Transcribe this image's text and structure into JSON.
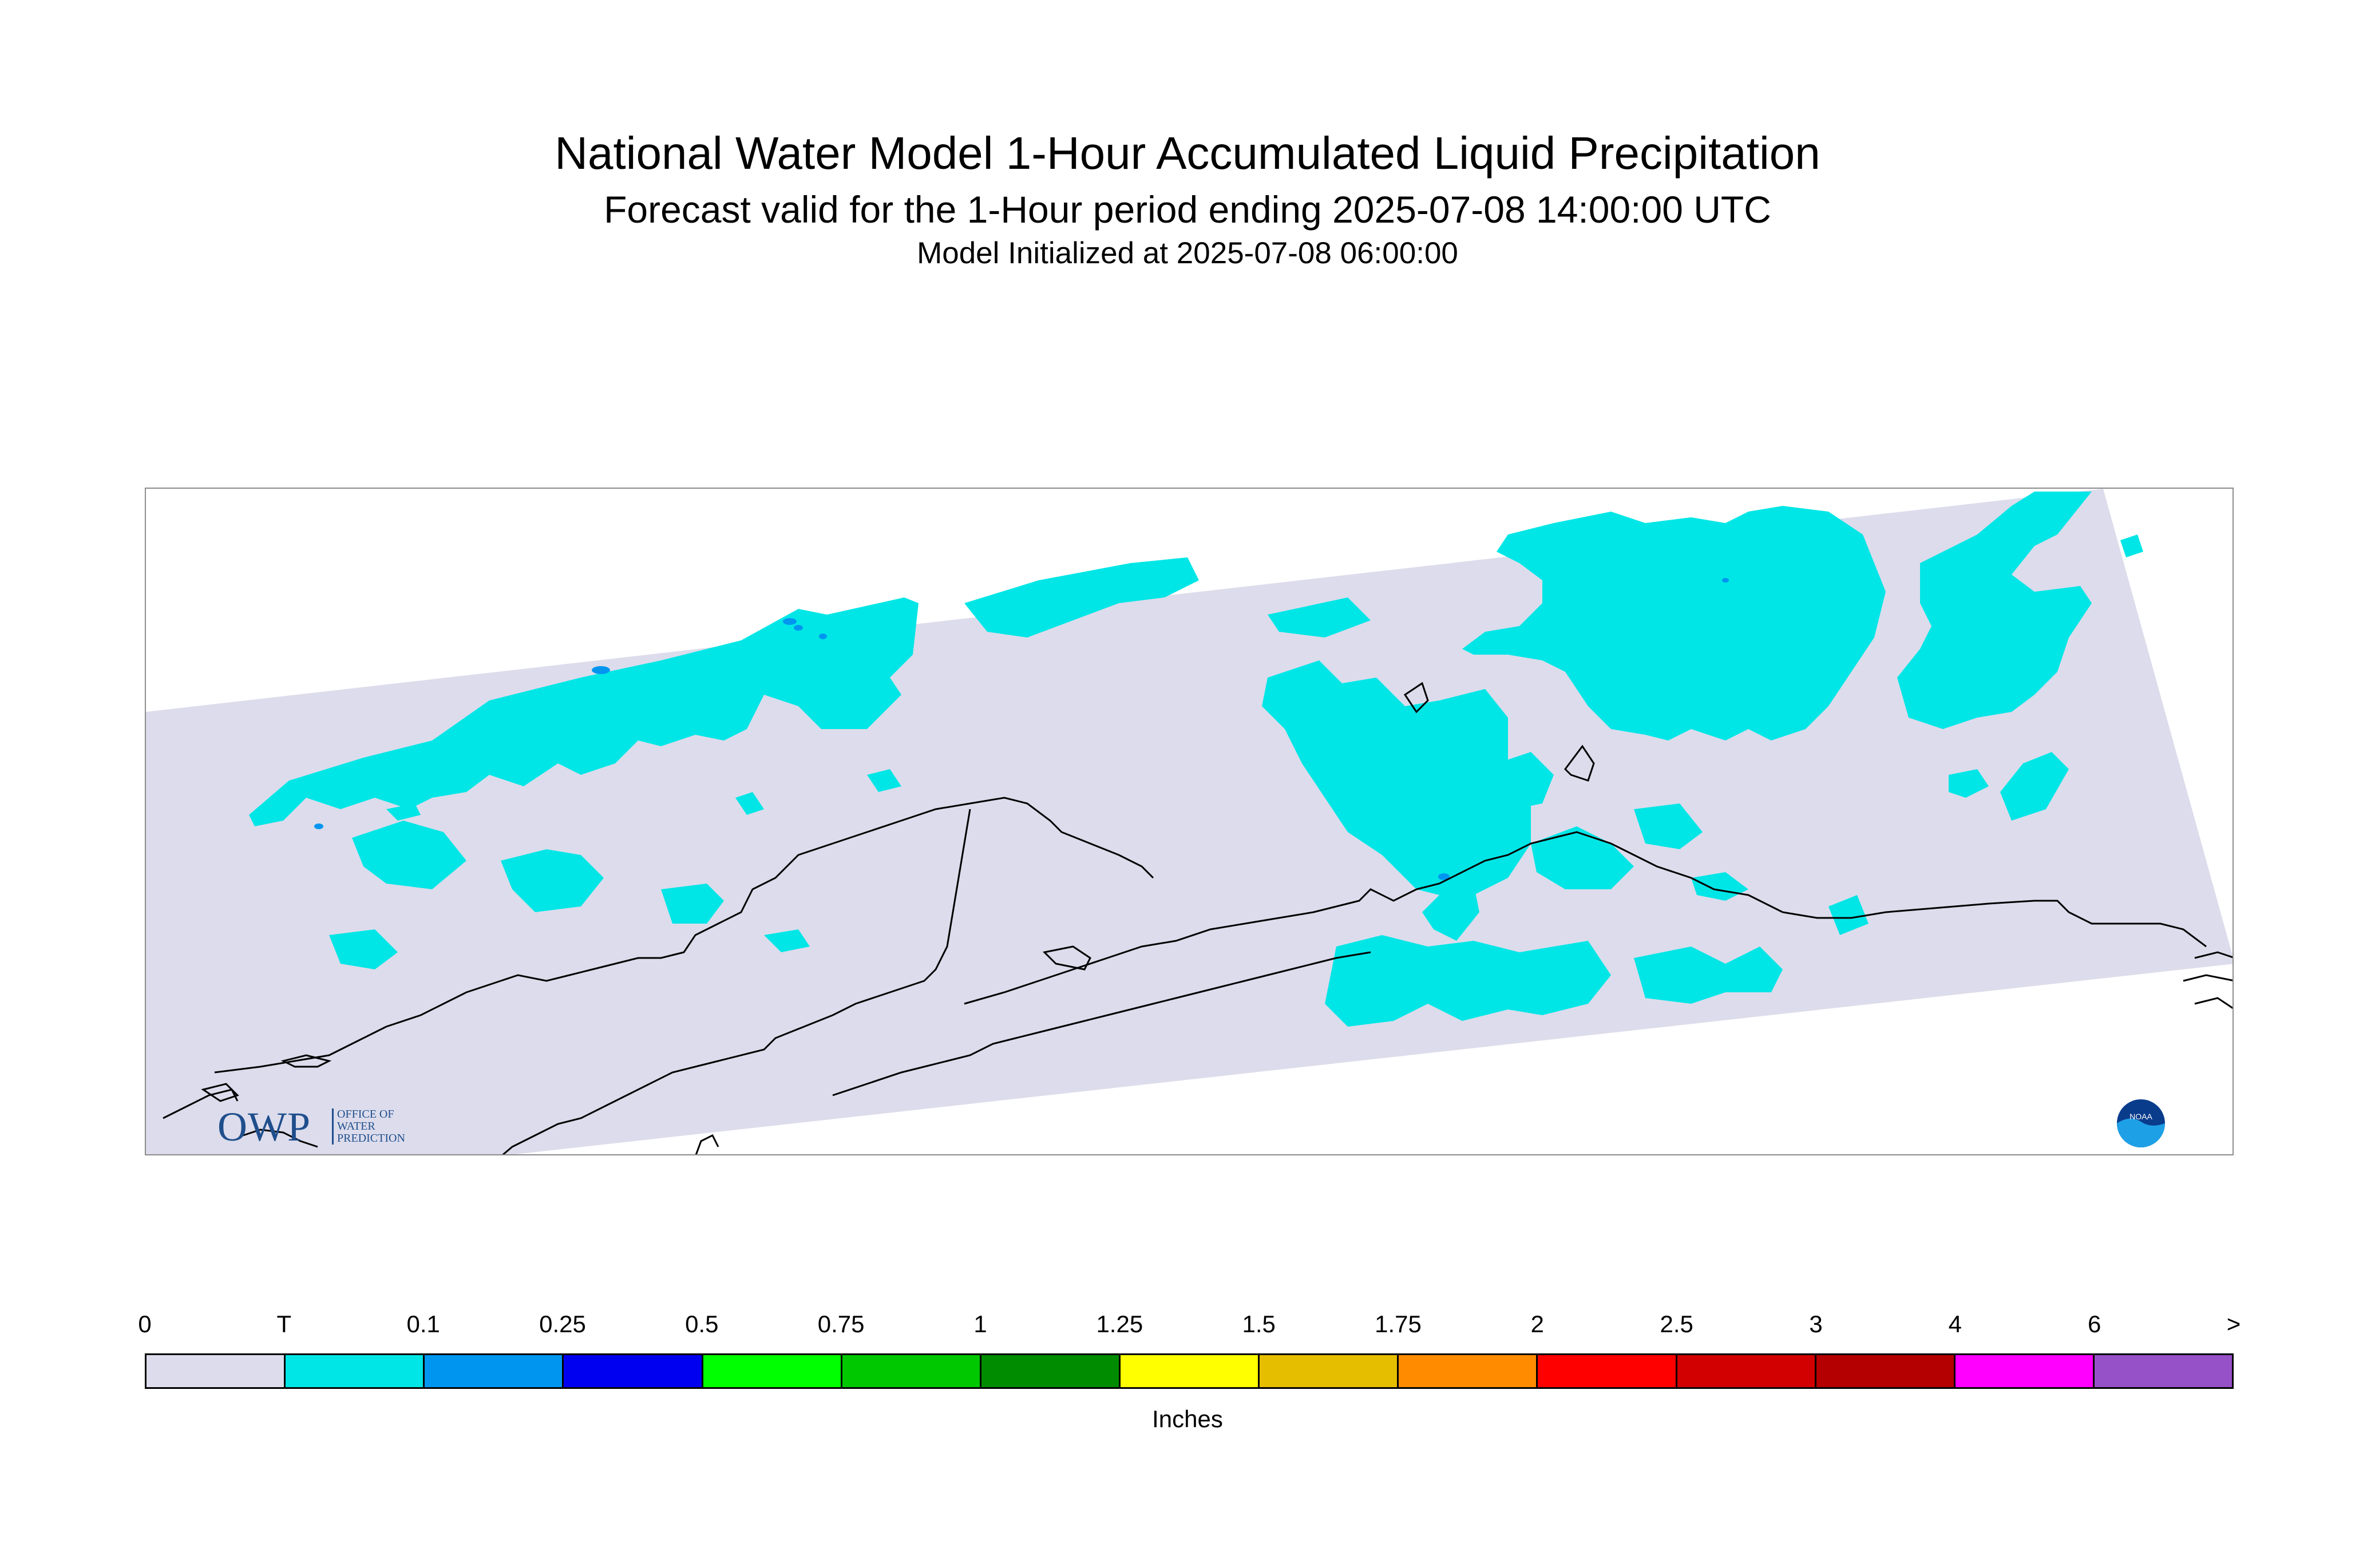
{
  "titles": {
    "main": "National Water Model 1-Hour Accumulated Liquid Precipitation",
    "subtitle": "Forecast valid for the 1-Hour period ending 2025-07-08 14:00:00 UTC",
    "init": "Model Initialized at 2025-07-08 06:00:00"
  },
  "logos": {
    "owp_main": "OWP",
    "owp_sub_line1": "OFFICE OF",
    "owp_sub_line2": "WATER",
    "owp_sub_line3": "PREDICTION",
    "noaa": "NOAA"
  },
  "legend": {
    "units": "Inches",
    "tick_labels": [
      "0",
      "T",
      "0.1",
      "0.25",
      "0.5",
      "0.75",
      "1",
      "1.25",
      "1.5",
      "1.75",
      "2",
      "2.5",
      "3",
      "4",
      "6",
      ">"
    ],
    "colors": [
      "#dcdcec",
      "#00e6e6",
      "#0096f0",
      "#0000f0",
      "#00ff00",
      "#00c800",
      "#008c00",
      "#ffff00",
      "#e6be00",
      "#ff8c00",
      "#ff0000",
      "#d20000",
      "#b40000",
      "#ff00ff",
      "#9650c8"
    ]
  },
  "map": {
    "domain_fill": "#dcdcec",
    "trace_fill": "#00e6e6",
    "light_fill": "#0096f0",
    "coastline_color": "#000000"
  }
}
